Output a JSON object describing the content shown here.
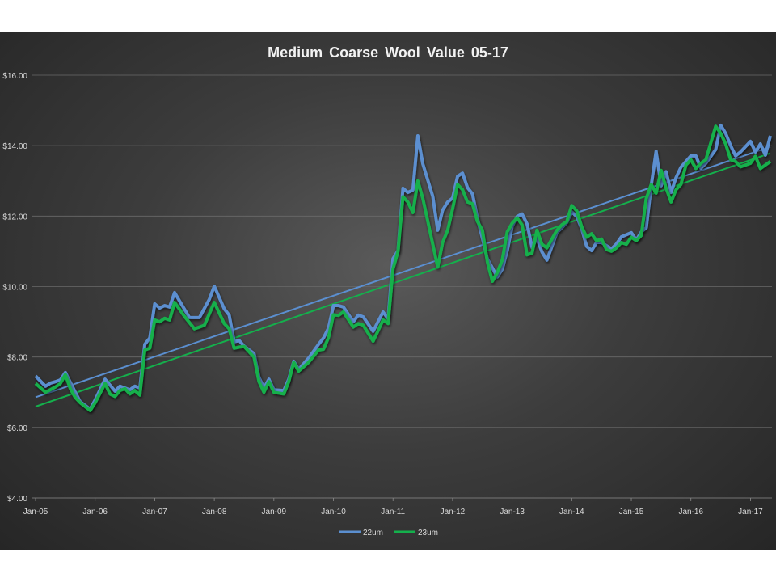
{
  "chart_data": {
    "type": "line",
    "title": "Medium  Coarse  Wool  Value  05-17",
    "xlabel": "",
    "ylabel": "",
    "ylim": [
      4,
      16
    ],
    "yticks": [
      "$4.00",
      "$6.00",
      "$8.00",
      "$10.00",
      "$12.00",
      "$14.00",
      "$16.00"
    ],
    "ytick_values": [
      4,
      6,
      8,
      10,
      12,
      14,
      16
    ],
    "xlim": [
      "2005-01",
      "2017-05"
    ],
    "xticks": [
      "Jan-05",
      "Jan-06",
      "Jan-07",
      "Jan-08",
      "Jan-09",
      "Jan-10",
      "Jan-11",
      "Jan-12",
      "Jan-13",
      "Jan-14",
      "Jan-15",
      "Jan-16",
      "Jan-17"
    ],
    "xtick_values": [
      "2005-01",
      "2006-01",
      "2007-01",
      "2008-01",
      "2009-01",
      "2010-01",
      "2011-01",
      "2012-01",
      "2013-01",
      "2014-01",
      "2015-01",
      "2016-01",
      "2017-01"
    ],
    "grid": true,
    "legend_position": "bottom",
    "trendlines": "linear",
    "series": [
      {
        "name": "22um",
        "color": "#5b8fd0",
        "points": [
          [
            "2005-01",
            7.46
          ],
          [
            "2005-03",
            7.17
          ],
          [
            "2005-04",
            7.26
          ],
          [
            "2005-05",
            7.3
          ],
          [
            "2005-06",
            7.35
          ],
          [
            "2005-07",
            7.56
          ],
          [
            "2005-09",
            7.0
          ],
          [
            "2005-10",
            6.73
          ],
          [
            "2005-12",
            6.52
          ],
          [
            "2006-01",
            6.78
          ],
          [
            "2006-03",
            7.37
          ],
          [
            "2006-05",
            7.03
          ],
          [
            "2006-06",
            7.17
          ],
          [
            "2006-08",
            7.07
          ],
          [
            "2006-09",
            7.17
          ],
          [
            "2006-10",
            7.12
          ],
          [
            "2006-11",
            8.36
          ],
          [
            "2006-12",
            8.54
          ],
          [
            "2007-01",
            9.51
          ],
          [
            "2007-02",
            9.39
          ],
          [
            "2007-03",
            9.46
          ],
          [
            "2007-04",
            9.42
          ],
          [
            "2007-05",
            9.83
          ],
          [
            "2007-07",
            9.35
          ],
          [
            "2007-08",
            9.12
          ],
          [
            "2007-10",
            9.12
          ],
          [
            "2007-12",
            9.64
          ],
          [
            "2008-01",
            10.01
          ],
          [
            "2008-03",
            9.37
          ],
          [
            "2008-04",
            9.19
          ],
          [
            "2008-05",
            8.43
          ],
          [
            "2008-06",
            8.47
          ],
          [
            "2008-07",
            8.31
          ],
          [
            "2008-09",
            8.1
          ],
          [
            "2008-10",
            7.42
          ],
          [
            "2008-11",
            7.12
          ],
          [
            "2008-12",
            7.37
          ],
          [
            "2009-01",
            7.07
          ],
          [
            "2009-03",
            7.05
          ],
          [
            "2009-04",
            7.37
          ],
          [
            "2009-05",
            7.88
          ],
          [
            "2009-06",
            7.65
          ],
          [
            "2009-08",
            7.97
          ],
          [
            "2009-10",
            8.36
          ],
          [
            "2009-11",
            8.54
          ],
          [
            "2009-12",
            8.82
          ],
          [
            "2010-01",
            9.46
          ],
          [
            "2010-02",
            9.46
          ],
          [
            "2010-03",
            9.42
          ],
          [
            "2010-05",
            9.0
          ],
          [
            "2010-06",
            9.19
          ],
          [
            "2010-07",
            9.14
          ],
          [
            "2010-09",
            8.73
          ],
          [
            "2010-11",
            9.28
          ],
          [
            "2010-12",
            9.09
          ],
          [
            "2011-01",
            10.79
          ],
          [
            "2011-02",
            11.02
          ],
          [
            "2011-03",
            12.79
          ],
          [
            "2011-04",
            12.67
          ],
          [
            "2011-05",
            12.74
          ],
          [
            "2011-06",
            14.28
          ],
          [
            "2011-07",
            13.48
          ],
          [
            "2011-09",
            12.56
          ],
          [
            "2011-10",
            11.6
          ],
          [
            "2011-11",
            12.17
          ],
          [
            "2011-12",
            12.4
          ],
          [
            "2012-01",
            12.51
          ],
          [
            "2012-02",
            13.13
          ],
          [
            "2012-03",
            13.22
          ],
          [
            "2012-04",
            12.81
          ],
          [
            "2012-05",
            12.63
          ],
          [
            "2012-06",
            11.94
          ],
          [
            "2012-07",
            11.37
          ],
          [
            "2012-08",
            10.79
          ],
          [
            "2012-10",
            10.27
          ],
          [
            "2012-11",
            10.49
          ],
          [
            "2012-12",
            11.02
          ],
          [
            "2013-01",
            11.71
          ],
          [
            "2013-02",
            11.99
          ],
          [
            "2013-03",
            12.06
          ],
          [
            "2013-04",
            11.78
          ],
          [
            "2013-05",
            11.11
          ],
          [
            "2013-06",
            11.37
          ],
          [
            "2013-07",
            10.98
          ],
          [
            "2013-08",
            10.75
          ],
          [
            "2013-10",
            11.53
          ],
          [
            "2013-11",
            11.67
          ],
          [
            "2013-12",
            11.82
          ],
          [
            "2014-01",
            12.12
          ],
          [
            "2014-02",
            11.99
          ],
          [
            "2014-03",
            11.64
          ],
          [
            "2014-04",
            11.14
          ],
          [
            "2014-05",
            11.02
          ],
          [
            "2014-06",
            11.25
          ],
          [
            "2014-07",
            11.25
          ],
          [
            "2014-09",
            11.07
          ],
          [
            "2014-10",
            11.21
          ],
          [
            "2014-11",
            11.41
          ],
          [
            "2015-01",
            11.53
          ],
          [
            "2015-02",
            11.32
          ],
          [
            "2015-03",
            11.55
          ],
          [
            "2015-04",
            11.67
          ],
          [
            "2015-05",
            12.86
          ],
          [
            "2015-06",
            13.84
          ],
          [
            "2015-07",
            12.86
          ],
          [
            "2015-08",
            13.26
          ],
          [
            "2015-09",
            12.67
          ],
          [
            "2015-10",
            13.09
          ],
          [
            "2015-11",
            13.39
          ],
          [
            "2016-01",
            13.71
          ],
          [
            "2016-02",
            13.71
          ],
          [
            "2016-03",
            13.36
          ],
          [
            "2016-04",
            13.5
          ],
          [
            "2016-06",
            13.89
          ],
          [
            "2016-07",
            14.58
          ],
          [
            "2016-08",
            14.35
          ],
          [
            "2016-09",
            14.0
          ],
          [
            "2016-10",
            13.71
          ],
          [
            "2016-11",
            13.82
          ],
          [
            "2017-01",
            14.12
          ],
          [
            "2017-02",
            13.82
          ],
          [
            "2017-03",
            14.05
          ],
          [
            "2017-04",
            13.73
          ],
          [
            "2017-05",
            14.28
          ]
        ]
      },
      {
        "name": "23um",
        "color": "#14b04c",
        "points": [
          [
            "2005-01",
            7.25
          ],
          [
            "2005-03",
            7.0
          ],
          [
            "2005-05",
            7.15
          ],
          [
            "2005-06",
            7.25
          ],
          [
            "2005-07",
            7.5
          ],
          [
            "2005-08",
            7.1
          ],
          [
            "2005-09",
            6.85
          ],
          [
            "2005-10",
            6.7
          ],
          [
            "2005-12",
            6.48
          ],
          [
            "2006-01",
            6.7
          ],
          [
            "2006-03",
            7.25
          ],
          [
            "2006-04",
            6.95
          ],
          [
            "2006-05",
            6.88
          ],
          [
            "2006-06",
            7.05
          ],
          [
            "2006-07",
            7.1
          ],
          [
            "2006-08",
            6.95
          ],
          [
            "2006-09",
            7.05
          ],
          [
            "2006-10",
            6.92
          ],
          [
            "2006-11",
            8.2
          ],
          [
            "2006-12",
            8.25
          ],
          [
            "2007-01",
            9.05
          ],
          [
            "2007-02",
            9.0
          ],
          [
            "2007-03",
            9.1
          ],
          [
            "2007-04",
            9.05
          ],
          [
            "2007-05",
            9.55
          ],
          [
            "2007-07",
            9.15
          ],
          [
            "2007-09",
            8.8
          ],
          [
            "2007-10",
            8.85
          ],
          [
            "2007-11",
            8.9
          ],
          [
            "2008-01",
            9.55
          ],
          [
            "2008-03",
            8.95
          ],
          [
            "2008-04",
            8.8
          ],
          [
            "2008-05",
            8.25
          ],
          [
            "2008-06",
            8.28
          ],
          [
            "2008-07",
            8.3
          ],
          [
            "2008-09",
            8.0
          ],
          [
            "2008-10",
            7.3
          ],
          [
            "2008-11",
            7.0
          ],
          [
            "2008-12",
            7.3
          ],
          [
            "2009-01",
            7.0
          ],
          [
            "2009-03",
            6.95
          ],
          [
            "2009-04",
            7.3
          ],
          [
            "2009-05",
            7.85
          ],
          [
            "2009-06",
            7.6
          ],
          [
            "2009-08",
            7.85
          ],
          [
            "2009-10",
            8.2
          ],
          [
            "2009-11",
            8.22
          ],
          [
            "2009-12",
            8.55
          ],
          [
            "2010-01",
            9.2
          ],
          [
            "2010-02",
            9.18
          ],
          [
            "2010-03",
            9.28
          ],
          [
            "2010-05",
            8.85
          ],
          [
            "2010-06",
            8.95
          ],
          [
            "2010-07",
            8.9
          ],
          [
            "2010-09",
            8.45
          ],
          [
            "2010-11",
            9.05
          ],
          [
            "2010-12",
            8.95
          ],
          [
            "2011-01",
            10.5
          ],
          [
            "2011-02",
            11.0
          ],
          [
            "2011-03",
            12.55
          ],
          [
            "2011-04",
            12.4
          ],
          [
            "2011-05",
            12.1
          ],
          [
            "2011-06",
            13.0
          ],
          [
            "2011-07",
            12.5
          ],
          [
            "2011-09",
            11.2
          ],
          [
            "2011-10",
            10.55
          ],
          [
            "2011-11",
            11.25
          ],
          [
            "2011-12",
            11.6
          ],
          [
            "2012-01",
            12.2
          ],
          [
            "2012-02",
            12.9
          ],
          [
            "2012-03",
            12.75
          ],
          [
            "2012-04",
            12.4
          ],
          [
            "2012-05",
            12.35
          ],
          [
            "2012-06",
            11.85
          ],
          [
            "2012-07",
            11.6
          ],
          [
            "2012-08",
            10.7
          ],
          [
            "2012-09",
            10.15
          ],
          [
            "2012-10",
            10.4
          ],
          [
            "2012-11",
            10.75
          ],
          [
            "2012-12",
            11.55
          ],
          [
            "2013-01",
            11.8
          ],
          [
            "2013-02",
            11.95
          ],
          [
            "2013-03",
            11.75
          ],
          [
            "2013-04",
            10.9
          ],
          [
            "2013-05",
            10.95
          ],
          [
            "2013-06",
            11.6
          ],
          [
            "2013-07",
            11.2
          ],
          [
            "2013-08",
            11.1
          ],
          [
            "2013-10",
            11.6
          ],
          [
            "2013-11",
            11.75
          ],
          [
            "2013-12",
            11.85
          ],
          [
            "2014-01",
            12.3
          ],
          [
            "2014-02",
            12.15
          ],
          [
            "2014-03",
            11.7
          ],
          [
            "2014-04",
            11.4
          ],
          [
            "2014-05",
            11.5
          ],
          [
            "2014-06",
            11.3
          ],
          [
            "2014-07",
            11.35
          ],
          [
            "2014-08",
            11.05
          ],
          [
            "2014-09",
            11.0
          ],
          [
            "2014-10",
            11.1
          ],
          [
            "2014-11",
            11.25
          ],
          [
            "2014-12",
            11.2
          ],
          [
            "2015-01",
            11.4
          ],
          [
            "2015-02",
            11.3
          ],
          [
            "2015-03",
            11.45
          ],
          [
            "2015-04",
            12.5
          ],
          [
            "2015-05",
            12.9
          ],
          [
            "2015-06",
            12.65
          ],
          [
            "2015-07",
            13.3
          ],
          [
            "2015-08",
            12.8
          ],
          [
            "2015-09",
            12.4
          ],
          [
            "2015-10",
            12.75
          ],
          [
            "2015-11",
            12.9
          ],
          [
            "2015-12",
            13.45
          ],
          [
            "2016-01",
            13.6
          ],
          [
            "2016-02",
            13.35
          ],
          [
            "2016-03",
            13.5
          ],
          [
            "2016-04",
            13.6
          ],
          [
            "2016-06",
            14.55
          ],
          [
            "2016-07",
            14.35
          ],
          [
            "2016-08",
            14.05
          ],
          [
            "2016-09",
            13.6
          ],
          [
            "2016-10",
            13.55
          ],
          [
            "2016-11",
            13.4
          ],
          [
            "2017-01",
            13.5
          ],
          [
            "2017-02",
            13.7
          ],
          [
            "2017-03",
            13.35
          ],
          [
            "2017-05",
            13.55
          ]
        ]
      }
    ]
  }
}
